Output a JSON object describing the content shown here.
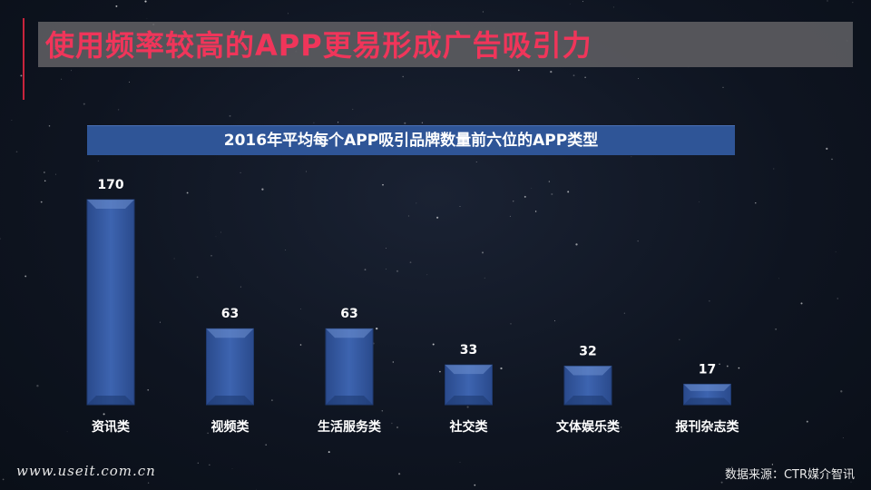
{
  "title": "使用频率较高的APP更易形成广告吸引力",
  "colors": {
    "accent": "#f0355a",
    "title_bar": "#5b5b5f",
    "subtitle_bar": "#2f5597",
    "bar_fill": "#3d64b0",
    "bar_edge": "#2a4a8c"
  },
  "chart_data": {
    "type": "bar",
    "title": "2016年平均每个APP吸引品牌数量前六位的APP类型",
    "categories": [
      "资讯类",
      "视频类",
      "生活服务类",
      "社交类",
      "文体娱乐类",
      "报刊杂志类"
    ],
    "values": [
      170,
      63,
      63,
      33,
      32,
      17
    ],
    "ylim": [
      0,
      170
    ],
    "grid": false,
    "data_labels": true
  },
  "footer": {
    "website": "www.useit.com.cn",
    "source": "数据来源：CTR媒介智讯"
  }
}
